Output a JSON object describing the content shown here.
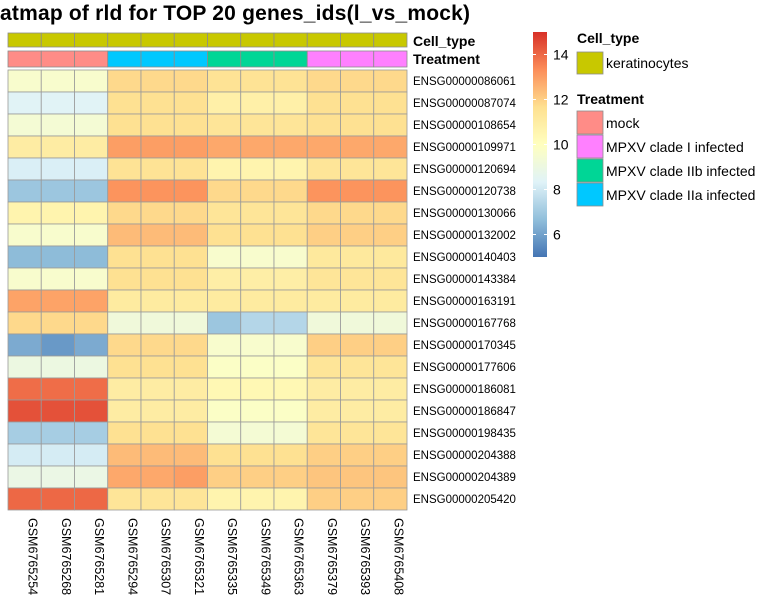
{
  "title": "atmap of rld for TOP 20 genes_ids(l_vs_mock)",
  "chart_data": {
    "type": "heatmap",
    "title": "atmap of rld for TOP 20 genes_ids(l_vs_mock)",
    "samples": [
      "GSM6765254",
      "GSM6765268",
      "GSM6765281",
      "GSM6765294",
      "GSM6765307",
      "GSM6765321",
      "GSM6765335",
      "GSM6765349",
      "GSM6765363",
      "GSM6765379",
      "GSM6765393",
      "GSM6765408"
    ],
    "genes": [
      "ENSG00000086061",
      "ENSG00000087074",
      "ENSG00000108654",
      "ENSG00000109971",
      "ENSG00000120694",
      "ENSG00000120738",
      "ENSG00000130066",
      "ENSG00000132002",
      "ENSG00000140403",
      "ENSG00000143384",
      "ENSG00000163191",
      "ENSG00000167768",
      "ENSG00000170345",
      "ENSG00000177606",
      "ENSG00000186081",
      "ENSG00000186847",
      "ENSG00000198435",
      "ENSG00000204388",
      "ENSG00000204389",
      "ENSG00000205420"
    ],
    "values": [
      [
        9.6,
        9.6,
        9.6,
        11.8,
        11.8,
        11.8,
        11.5,
        11.5,
        11.5,
        11.8,
        11.8,
        11.8
      ],
      [
        8.4,
        8.4,
        8.4,
        11.6,
        11.6,
        11.6,
        10.8,
        10.8,
        10.8,
        11.6,
        11.6,
        11.6
      ],
      [
        9.4,
        9.4,
        9.4,
        11.6,
        11.6,
        11.6,
        11.4,
        11.4,
        11.4,
        11.6,
        11.6,
        11.6
      ],
      [
        11.0,
        11.0,
        11.0,
        13.0,
        13.0,
        13.0,
        12.8,
        12.8,
        12.8,
        12.8,
        12.8,
        12.8
      ],
      [
        8.2,
        8.2,
        8.2,
        11.5,
        11.5,
        11.5,
        10.6,
        10.6,
        10.6,
        11.4,
        11.4,
        11.4
      ],
      [
        6.9,
        6.9,
        6.9,
        13.2,
        13.2,
        13.2,
        11.8,
        11.8,
        11.8,
        13.2,
        13.2,
        13.2
      ],
      [
        10.6,
        10.6,
        10.6,
        11.8,
        11.8,
        11.8,
        11.4,
        11.4,
        11.4,
        11.8,
        11.8,
        11.8
      ],
      [
        9.6,
        9.6,
        9.6,
        12.4,
        12.4,
        12.4,
        11.6,
        11.6,
        11.6,
        12.0,
        12.0,
        12.0
      ],
      [
        6.6,
        6.6,
        6.6,
        11.6,
        11.6,
        11.6,
        9.6,
        9.6,
        9.6,
        11.2,
        11.2,
        11.2
      ],
      [
        9.6,
        9.6,
        9.6,
        11.6,
        11.6,
        11.6,
        10.9,
        10.9,
        10.9,
        11.4,
        11.4,
        11.4
      ],
      [
        12.9,
        12.9,
        12.9,
        11.1,
        11.1,
        11.1,
        11.1,
        11.1,
        11.1,
        11.1,
        11.1,
        11.1
      ],
      [
        11.8,
        11.8,
        11.8,
        9.2,
        9.2,
        9.2,
        6.9,
        7.4,
        7.4,
        9.2,
        9.2,
        9.2
      ],
      [
        6.2,
        5.8,
        6.2,
        11.8,
        11.8,
        11.8,
        9.6,
        9.6,
        9.6,
        12.0,
        12.0,
        12.0
      ],
      [
        9.0,
        9.0,
        9.0,
        11.6,
        11.6,
        11.6,
        9.8,
        9.8,
        9.8,
        11.4,
        11.4,
        11.4
      ],
      [
        13.9,
        13.9,
        13.9,
        11.0,
        11.0,
        11.0,
        10.4,
        10.4,
        10.4,
        11.0,
        11.0,
        11.0
      ],
      [
        14.4,
        14.4,
        14.4,
        11.0,
        11.0,
        11.0,
        9.8,
        9.8,
        9.8,
        11.0,
        11.0,
        11.0
      ],
      [
        7.1,
        7.1,
        7.1,
        11.6,
        11.6,
        11.6,
        9.4,
        9.4,
        9.4,
        11.4,
        11.4,
        11.4
      ],
      [
        8.1,
        8.1,
        8.1,
        12.4,
        12.4,
        12.4,
        11.6,
        11.6,
        11.6,
        12.0,
        12.0,
        12.0
      ],
      [
        8.9,
        8.9,
        8.9,
        12.8,
        12.8,
        13.0,
        12.0,
        12.0,
        12.0,
        12.2,
        12.2,
        12.2
      ],
      [
        14.0,
        14.0,
        14.0,
        11.4,
        11.4,
        11.4,
        10.6,
        10.6,
        10.6,
        12.0,
        12.0,
        12.0
      ]
    ],
    "annotation_rows": [
      "Cell_type",
      "Treatment"
    ],
    "cell_type": [
      "keratinocytes",
      "keratinocytes",
      "keratinocytes",
      "keratinocytes",
      "keratinocytes",
      "keratinocytes",
      "keratinocytes",
      "keratinocytes",
      "keratinocytes",
      "keratinocytes",
      "keratinocytes",
      "keratinocytes"
    ],
    "treatment": [
      "mock",
      "mock",
      "mock",
      "MPXV clade IIa infected",
      "MPXV clade IIa infected",
      "MPXV clade IIa infected",
      "MPXV clade IIb infected",
      "MPXV clade IIb infected",
      "MPXV clade IIb infected",
      "MPXV clade I infected",
      "MPXV clade I infected",
      "MPXV clade I infected"
    ],
    "colorbar": {
      "range": [
        5,
        15
      ],
      "ticks": [
        6,
        8,
        10,
        12,
        14
      ],
      "colors": [
        "#4575b4",
        "#91bfdb",
        "#e0f3f8",
        "#ffffbf",
        "#fee090",
        "#fc8d59",
        "#d73027"
      ]
    },
    "legend": {
      "cell_type_title": "Cell_type",
      "cell_type_items": [
        {
          "label": "keratinocytes",
          "color": "#c8c800"
        }
      ],
      "treatment_title": "Treatment",
      "treatment_items": [
        {
          "label": "mock",
          "color": "#ff8c87"
        },
        {
          "label": "MPXV clade I infected",
          "color": "#ff80ff"
        },
        {
          "label": "MPXV clade IIb infected",
          "color": "#00d696"
        },
        {
          "label": "MPXV clade IIa infected",
          "color": "#00c8ff"
        }
      ]
    }
  }
}
